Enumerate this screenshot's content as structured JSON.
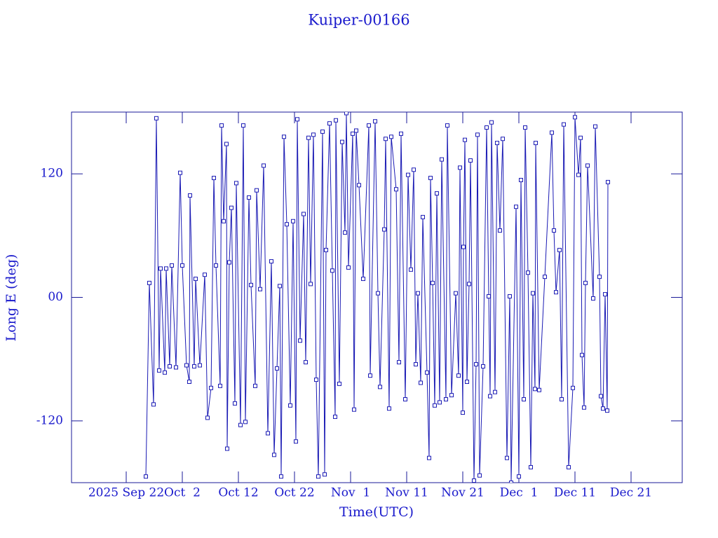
{
  "chart_data": {
    "type": "line",
    "title": "Kuiper-00166",
    "x_label": "Time(UTC)",
    "y_label": "Long E (deg)",
    "color": "#1a1ab4",
    "xlim": [
      "2025-09-12T06:00",
      "2025-12-30T03:00"
    ],
    "xticks": [
      {
        "value": "2025-09-22T00:00",
        "label": "2025 Sep 22"
      },
      {
        "value": "2025-10-02T00:00",
        "label": "Oct  2"
      },
      {
        "value": "2025-10-12T00:00",
        "label": "Oct 12"
      },
      {
        "value": "2025-10-22T00:00",
        "label": "Oct 22"
      },
      {
        "value": "2025-11-01T00:00",
        "label": "Nov  1"
      },
      {
        "value": "2025-11-11T00:00",
        "label": "Nov 11"
      },
      {
        "value": "2025-11-21T00:00",
        "label": "Nov 21"
      },
      {
        "value": "2025-12-01T00:00",
        "label": "Dec  1"
      },
      {
        "value": "2025-12-11T00:00",
        "label": "Dec 11"
      },
      {
        "value": "2025-12-21T00:00",
        "label": "Dec 21"
      }
    ],
    "ylim": [
      -180,
      180
    ],
    "yticks": [
      -120,
      {
        "value": 0,
        "label": "00"
      },
      120
    ],
    "x": [
      "2025-09-25T12:00",
      "2025-09-26T03:00",
      "2025-09-26T21:00",
      "2025-09-27T09:00",
      "2025-09-27T21:00",
      "2025-09-28T03:00",
      "2025-09-28T21:00",
      "2025-09-29T03:00",
      "2025-09-29T18:00",
      "2025-09-30T03:00",
      "2025-09-30T21:00",
      "2025-10-01T15:00",
      "2025-10-02T00:00",
      "2025-10-02T18:00",
      "2025-10-03T06:00",
      "2025-10-03T09:00",
      "2025-10-04T03:00",
      "2025-10-04T09:00",
      "2025-10-05T03:00",
      "2025-10-06T00:00",
      "2025-10-06T12:00",
      "2025-10-07T03:00",
      "2025-10-07T15:00",
      "2025-10-08T00:00",
      "2025-10-08T18:00",
      "2025-10-09T00:00",
      "2025-10-09T09:00",
      "2025-10-09T21:00",
      "2025-10-10T00:00",
      "2025-10-10T09:00",
      "2025-10-10T18:00",
      "2025-10-11T09:00",
      "2025-10-11T15:00",
      "2025-10-12T09:00",
      "2025-10-12T21:00",
      "2025-10-13T06:00",
      "2025-10-13T21:00",
      "2025-10-14T06:00",
      "2025-10-15T00:00",
      "2025-10-15T06:00",
      "2025-10-15T21:00",
      "2025-10-16T12:00",
      "2025-10-17T06:00",
      "2025-10-17T21:00",
      "2025-10-18T09:00",
      "2025-10-18T21:00",
      "2025-10-19T09:00",
      "2025-10-19T15:00",
      "2025-10-20T03:00",
      "2025-10-20T15:00",
      "2025-10-21T06:00",
      "2025-10-21T18:00",
      "2025-10-22T06:00",
      "2025-10-22T12:00",
      "2025-10-23T00:00",
      "2025-10-23T15:00",
      "2025-10-24T00:00",
      "2025-10-24T12:00",
      "2025-10-24T21:00",
      "2025-10-25T09:00",
      "2025-10-25T21:00",
      "2025-10-26T06:00",
      "2025-10-27T00:00",
      "2025-10-27T09:00",
      "2025-10-27T15:00",
      "2025-10-28T06:00",
      "2025-10-28T18:00",
      "2025-10-29T06:00",
      "2025-10-29T09:00",
      "2025-10-30T00:00",
      "2025-10-30T12:00",
      "2025-10-31T00:00",
      "2025-10-31T06:00",
      "2025-10-31T15:00",
      "2025-11-01T09:00",
      "2025-11-01T15:00",
      "2025-11-02T00:00",
      "2025-11-02T12:00",
      "2025-11-03T06:00",
      "2025-11-04T06:00",
      "2025-11-04T12:00",
      "2025-11-05T09:00",
      "2025-11-05T21:00",
      "2025-11-06T06:00",
      "2025-11-07T00:00",
      "2025-11-07T06:00",
      "2025-11-07T21:00",
      "2025-11-08T06:00",
      "2025-11-09T03:00",
      "2025-11-09T15:00",
      "2025-11-10T00:00",
      "2025-11-10T18:00",
      "2025-11-11T06:00",
      "2025-11-11T18:00",
      "2025-11-12T06:00",
      "2025-11-12T15:00",
      "2025-11-13T00:00",
      "2025-11-13T12:00",
      "2025-11-13T21:00",
      "2025-11-14T15:00",
      "2025-11-15T00:00",
      "2025-11-15T06:00",
      "2025-11-15T15:00",
      "2025-11-16T00:00",
      "2025-11-16T09:00",
      "2025-11-16T21:00",
      "2025-11-17T06:00",
      "2025-11-18T00:00",
      "2025-11-18T06:00",
      "2025-11-19T00:00",
      "2025-11-19T18:00",
      "2025-11-20T06:00",
      "2025-11-20T12:00",
      "2025-11-21T00:00",
      "2025-11-21T03:00",
      "2025-11-21T09:00",
      "2025-11-21T18:00",
      "2025-11-22T03:00",
      "2025-11-22T09:00",
      "2025-11-23T00:00",
      "2025-11-23T09:00",
      "2025-11-23T15:00",
      "2025-11-24T00:00",
      "2025-11-24T15:00",
      "2025-11-25T06:00",
      "2025-11-25T15:00",
      "2025-11-25T21:00",
      "2025-11-26T03:00",
      "2025-11-26T18:00",
      "2025-11-27T03:00",
      "2025-11-27T15:00",
      "2025-11-28T03:00",
      "2025-11-28T21:00",
      "2025-11-29T09:00",
      "2025-11-29T15:00",
      "2025-11-30T12:00",
      "2025-12-01T00:00",
      "2025-12-01T09:00",
      "2025-12-01T21:00",
      "2025-12-02T03:00",
      "2025-12-02T15:00",
      "2025-12-03T03:00",
      "2025-12-03T12:00",
      "2025-12-03T21:00",
      "2025-12-04T00:00",
      "2025-12-04T15:00",
      "2025-12-05T15:00",
      "2025-12-06T21:00",
      "2025-12-07T06:00",
      "2025-12-07T15:00",
      "2025-12-08T06:00",
      "2025-12-08T15:00",
      "2025-12-09T00:00",
      "2025-12-09T21:00",
      "2025-12-10T15:00",
      "2025-12-11T00:00",
      "2025-12-11T15:00",
      "2025-12-12T00:00",
      "2025-12-12T06:00",
      "2025-12-12T15:00",
      "2025-12-12T21:00",
      "2025-12-13T06:00",
      "2025-12-14T06:00",
      "2025-12-14T15:00",
      "2025-12-15T09:00",
      "2025-12-15T15:00",
      "2025-12-16T00:00",
      "2025-12-16T09:00",
      "2025-12-16T18:00",
      "2025-12-16T21:00"
    ],
    "values": [
      -174,
      14,
      -104,
      174,
      -71,
      28,
      -73,
      28,
      -67,
      31,
      -68,
      121,
      31,
      -66,
      -82,
      99,
      -67,
      18,
      -66,
      22,
      -117,
      -88,
      116,
      31,
      -86,
      167,
      74,
      149,
      -147,
      34,
      87,
      -103,
      111,
      -124,
      167,
      -121,
      97,
      12,
      -86,
      104,
      8,
      128,
      -132,
      35,
      -153,
      -69,
      11,
      -174,
      156,
      71,
      -105,
      74,
      -140,
      173,
      -42,
      81,
      -63,
      155,
      13,
      158,
      -80,
      -174,
      161,
      -172,
      46,
      169,
      26,
      -116,
      172,
      -84,
      151,
      63,
      179,
      29,
      159,
      -109,
      162,
      109,
      18,
      167,
      -76,
      171,
      4,
      -87,
      66,
      154,
      -108,
      156,
      105,
      -63,
      159,
      -99,
      119,
      27,
      124,
      -65,
      4,
      -83,
      78,
      -73,
      -156,
      116,
      14,
      -105,
      101,
      -102,
      134,
      -99,
      167,
      -95,
      4,
      -76,
      126,
      -112,
      49,
      153,
      -82,
      13,
      133,
      -178,
      -65,
      158,
      -173,
      -67,
      165,
      1,
      -96,
      170,
      -92,
      150,
      65,
      154,
      -156,
      1,
      -180,
      88,
      -174,
      114,
      -99,
      165,
      24,
      -165,
      4,
      -89,
      150,
      -90,
      20,
      160,
      65,
      5,
      46,
      -99,
      168,
      -165,
      -88,
      175,
      119,
      155,
      -56,
      -107,
      14,
      128,
      -1,
      166,
      20,
      -96,
      -108,
      3,
      -110,
      112
    ]
  }
}
